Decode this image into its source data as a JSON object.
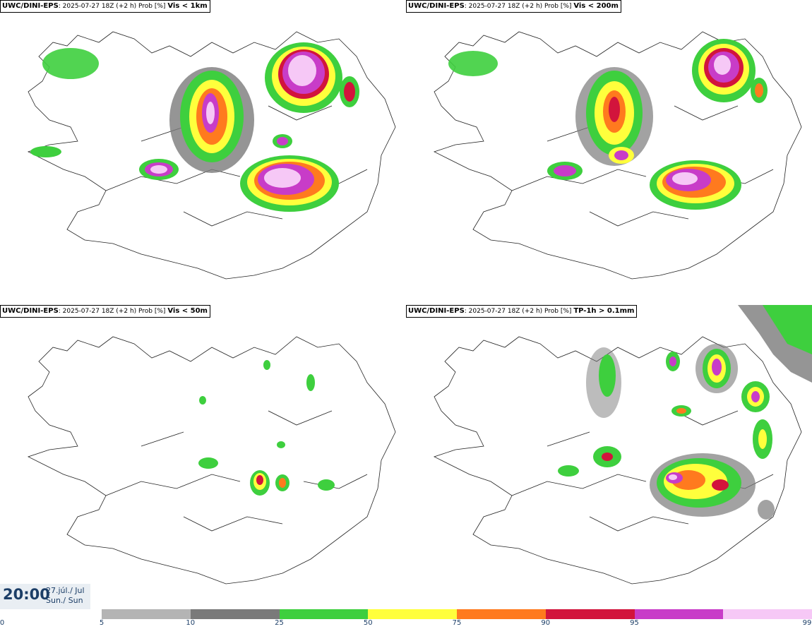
{
  "panels": [
    {
      "model": "UWC/DINI-EPS",
      "info": ": 2025-07-27 18Z (+2 h) Prob [%]",
      "variable": "Vis < 1km"
    },
    {
      "model": "UWC/DINI-EPS",
      "info": ": 2025-07-27 18Z (+2 h) Prob [%]",
      "variable": "Vis < 200m"
    },
    {
      "model": "UWC/DINI-EPS",
      "info": ": 2025-07-27 18Z (+2 h) Prob [%]",
      "variable": "Vis < 50m"
    },
    {
      "model": "UWC/DINI-EPS",
      "info": ": 2025-07-27 18Z (+2 h) Prob [%]",
      "variable": "TP-1h > 0.1mm"
    }
  ],
  "valid_time": {
    "time": "20:00",
    "date_line1": "27.júl./ Jul",
    "date_line2": "Sun./ Sun"
  },
  "colorbar": {
    "levels": [
      "0",
      "5",
      "10",
      "25",
      "50",
      "75",
      "90",
      "95",
      "99"
    ],
    "colors": [
      "#ffffff",
      "#b4b4b4",
      "#7a7a7a",
      "#3ecf3e",
      "#ffff3c",
      "#ff7a1e",
      "#d2143c",
      "#c83cc8",
      "#f6c8f6"
    ]
  }
}
